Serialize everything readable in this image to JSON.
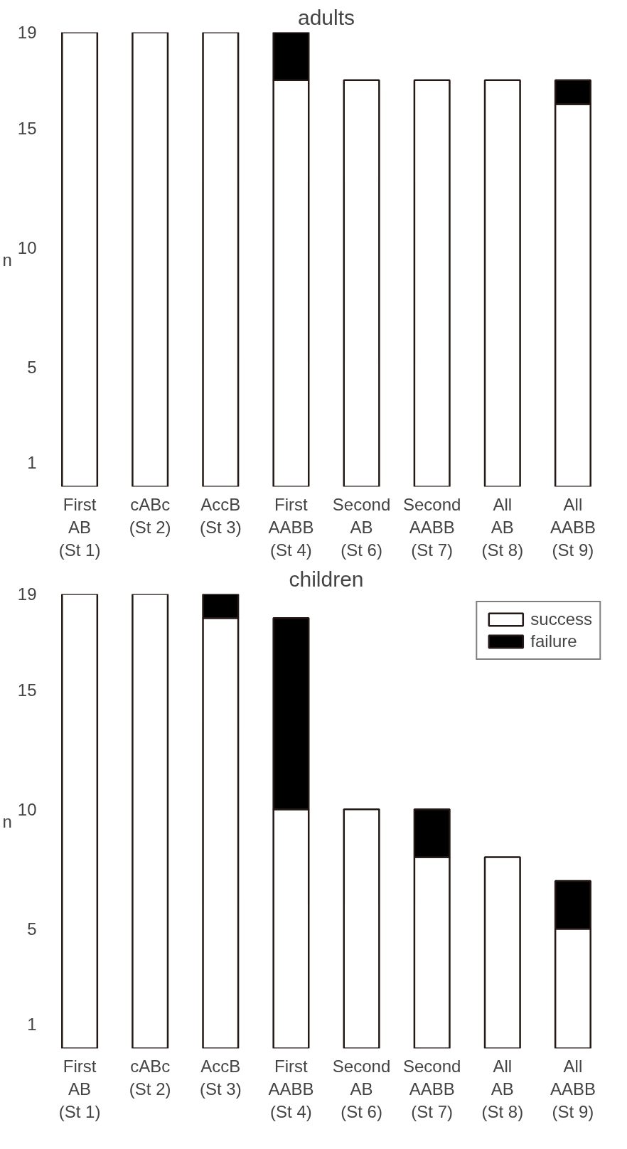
{
  "chart_data": [
    {
      "type": "bar",
      "title": "adults",
      "ylabel": "n",
      "stacked": true,
      "legend": false,
      "grid": false,
      "categories": [
        "First\nAB\n(St 1)",
        "cABc\n(St 2)",
        "AccB\n(St 3)",
        "First\nAABB\n(St 4)",
        "Second\nAB\n(St 6)",
        "Second\nAABB\n(St 7)",
        "All\nAB\n(St 8)",
        "All\nAABB\n(St 9)"
      ],
      "ylim": [
        0,
        19
      ],
      "yticks": [
        1,
        5,
        10,
        15,
        19
      ],
      "series": [
        {
          "color": "#ffffff",
          "values": [
            19,
            19,
            19,
            17,
            17,
            17,
            17,
            16
          ]
        },
        {
          "color": "#000000",
          "values": [
            null,
            null,
            null,
            2,
            null,
            null,
            null,
            1
          ]
        }
      ]
    },
    {
      "type": "bar",
      "title": "children",
      "ylabel": "n",
      "stacked": true,
      "legend": "top right",
      "grid": false,
      "categories": [
        "First\nAB\n(St 1)",
        "cABc\n(St 2)",
        "AccB\n(St 3)",
        "First\nAABB\n(St 4)",
        "Second\nAB\n(St 6)",
        "Second\nAABB\n(St 7)",
        "All\nAB\n(St 8)",
        "All\nAABB\n(St 9)"
      ],
      "ylim": [
        0,
        19
      ],
      "yticks": [
        1,
        5,
        10,
        15,
        19
      ],
      "series": [
        {
          "name": "success",
          "color": "#ffffff",
          "values": [
            19,
            19,
            18,
            10,
            10,
            8,
            8,
            5
          ]
        },
        {
          "name": "failure",
          "color": "#000000",
          "values": [
            null,
            null,
            1,
            8,
            null,
            2,
            null,
            2
          ]
        }
      ]
    }
  ]
}
